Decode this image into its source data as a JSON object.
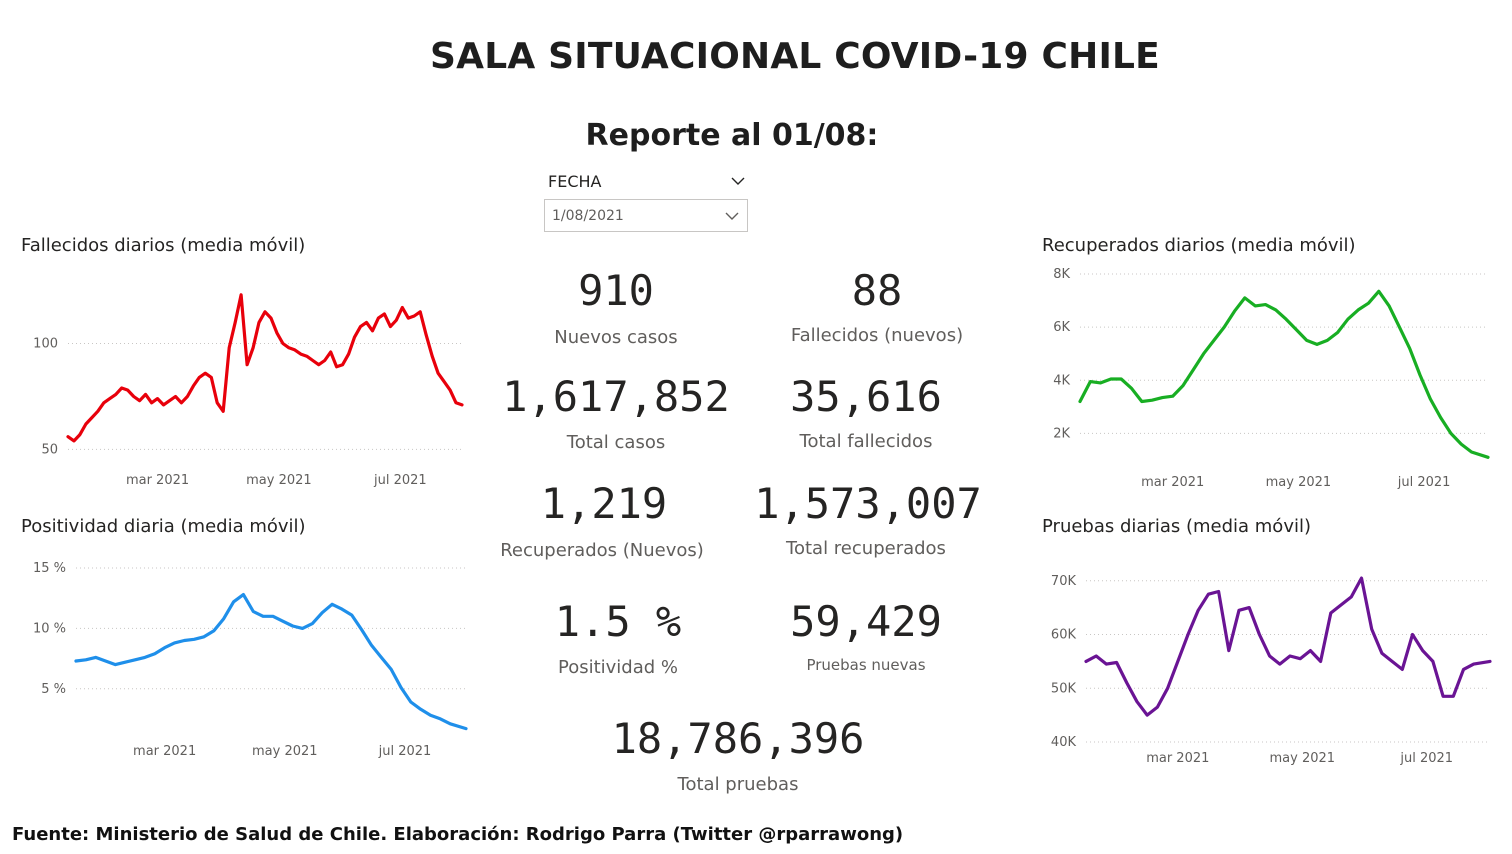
{
  "header": {
    "title": "SALA SITUACIONAL COVID-19 CHILE",
    "subtitle": "Reporte al 01/08:"
  },
  "slicer": {
    "label": "FECHA",
    "value": "1/08/2021"
  },
  "kpis": [
    {
      "value": "910",
      "label": "Nuevos casos"
    },
    {
      "value": "88",
      "label": "Fallecidos (nuevos)"
    },
    {
      "value": "1,617,852",
      "label": "Total casos"
    },
    {
      "value": "35,616",
      "label": "Total fallecidos"
    },
    {
      "value": "1,219",
      "label": "Recuperados (Nuevos)"
    },
    {
      "value": "1,573,007",
      "label": "Total recuperados"
    },
    {
      "value": "1.5 %",
      "label": "Positividad %"
    },
    {
      "value": "59,429",
      "label": "Pruebas nuevas"
    },
    {
      "value": "18,786,396",
      "label": "Total pruebas"
    }
  ],
  "footer": "Fuente: Ministerio de Salud de Chile. Elaboración: Rodrigo Parra (Twitter @rparrawong)",
  "chart_data": [
    {
      "id": "fallecidos",
      "type": "line",
      "title": "Fallecidos diarios (media móvil)",
      "color": "#e8000b",
      "x_range": [
        "2021-01-15",
        "2021-08-01"
      ],
      "y_range": [
        45,
        130
      ],
      "y_ticks": [
        {
          "v": 50,
          "label": "50"
        },
        {
          "v": 100,
          "label": "100"
        }
      ],
      "x_ticks": [
        {
          "x": "2021-03-01",
          "label": "mar 2021"
        },
        {
          "x": "2021-05-01",
          "label": "may 2021"
        },
        {
          "x": "2021-07-01",
          "label": "jul 2021"
        }
      ],
      "grid": true,
      "x": [
        "2021-01-15",
        "2021-01-18",
        "2021-01-21",
        "2021-01-24",
        "2021-01-27",
        "2021-01-30",
        "2021-02-02",
        "2021-02-05",
        "2021-02-08",
        "2021-02-11",
        "2021-02-14",
        "2021-02-17",
        "2021-02-20",
        "2021-02-23",
        "2021-02-26",
        "2021-03-01",
        "2021-03-04",
        "2021-03-07",
        "2021-03-10",
        "2021-03-13",
        "2021-03-16",
        "2021-03-19",
        "2021-03-22",
        "2021-03-25",
        "2021-03-28",
        "2021-03-31",
        "2021-04-03",
        "2021-04-06",
        "2021-04-09",
        "2021-04-12",
        "2021-04-15",
        "2021-04-18",
        "2021-04-21",
        "2021-04-24",
        "2021-04-27",
        "2021-04-30",
        "2021-05-03",
        "2021-05-06",
        "2021-05-09",
        "2021-05-12",
        "2021-05-15",
        "2021-05-18",
        "2021-05-21",
        "2021-05-24",
        "2021-05-27",
        "2021-05-30",
        "2021-06-02",
        "2021-06-05",
        "2021-06-08",
        "2021-06-11",
        "2021-06-14",
        "2021-06-17",
        "2021-06-20",
        "2021-06-23",
        "2021-06-26",
        "2021-06-29",
        "2021-07-02",
        "2021-07-05",
        "2021-07-08",
        "2021-07-11",
        "2021-07-14",
        "2021-07-17",
        "2021-07-20",
        "2021-07-23",
        "2021-07-26",
        "2021-07-29",
        "2021-08-01"
      ],
      "values": [
        56,
        54,
        57,
        62,
        65,
        68,
        72,
        74,
        76,
        79,
        78,
        75,
        73,
        76,
        72,
        74,
        71,
        73,
        75,
        72,
        75,
        80,
        84,
        86,
        84,
        72,
        68,
        98,
        110,
        123,
        90,
        98,
        110,
        115,
        112,
        105,
        100,
        98,
        97,
        95,
        94,
        92,
        90,
        92,
        96,
        89,
        90,
        95,
        103,
        108,
        110,
        106,
        112,
        114,
        108,
        111,
        117,
        112,
        113,
        115,
        104,
        94,
        86,
        82,
        78,
        72,
        71
      ]
    },
    {
      "id": "positividad",
      "type": "line",
      "title": "Positividad diaria (media móvil)",
      "color": "#1f8fea",
      "x_range": [
        "2021-01-15",
        "2021-08-01"
      ],
      "y_range": [
        1.5,
        15.5
      ],
      "y_ticks": [
        {
          "v": 5,
          "label": "5 %"
        },
        {
          "v": 10,
          "label": "10 %"
        },
        {
          "v": 15,
          "label": "15 %"
        }
      ],
      "x_ticks": [
        {
          "x": "2021-03-01",
          "label": "mar 2021"
        },
        {
          "x": "2021-05-01",
          "label": "may 2021"
        },
        {
          "x": "2021-07-01",
          "label": "jul 2021"
        }
      ],
      "grid": true,
      "x": [
        "2021-01-15",
        "2021-01-20",
        "2021-01-25",
        "2021-01-30",
        "2021-02-04",
        "2021-02-09",
        "2021-02-14",
        "2021-02-19",
        "2021-02-24",
        "2021-03-01",
        "2021-03-06",
        "2021-03-11",
        "2021-03-16",
        "2021-03-21",
        "2021-03-26",
        "2021-03-31",
        "2021-04-05",
        "2021-04-10",
        "2021-04-15",
        "2021-04-20",
        "2021-04-25",
        "2021-04-30",
        "2021-05-05",
        "2021-05-10",
        "2021-05-15",
        "2021-05-20",
        "2021-05-25",
        "2021-05-30",
        "2021-06-04",
        "2021-06-09",
        "2021-06-14",
        "2021-06-19",
        "2021-06-24",
        "2021-06-29",
        "2021-07-04",
        "2021-07-09",
        "2021-07-14",
        "2021-07-19",
        "2021-07-24",
        "2021-08-01"
      ],
      "values": [
        7.3,
        7.4,
        7.6,
        7.3,
        7.0,
        7.2,
        7.4,
        7.6,
        7.9,
        8.4,
        8.8,
        9.0,
        9.1,
        9.3,
        9.8,
        10.8,
        12.2,
        12.8,
        11.4,
        11.0,
        11.0,
        10.6,
        10.2,
        10.0,
        10.4,
        11.3,
        12.0,
        11.6,
        11.1,
        9.9,
        8.6,
        7.6,
        6.6,
        5.1,
        3.9,
        3.3,
        2.8,
        2.5,
        2.1,
        1.7
      ]
    },
    {
      "id": "recuperados",
      "type": "line",
      "title": "Recuperados diarios (media móvil)",
      "color": "#18ae23",
      "x_range": [
        "2021-01-15",
        "2021-08-01"
      ],
      "y_range": [
        1000,
        8000
      ],
      "y_ticks": [
        {
          "v": 2000,
          "label": "2K"
        },
        {
          "v": 4000,
          "label": "4K"
        },
        {
          "v": 6000,
          "label": "6K"
        },
        {
          "v": 8000,
          "label": "8K"
        }
      ],
      "x_ticks": [
        {
          "x": "2021-03-01",
          "label": "mar 2021"
        },
        {
          "x": "2021-05-01",
          "label": "may 2021"
        },
        {
          "x": "2021-07-01",
          "label": "jul 2021"
        }
      ],
      "grid": true,
      "x": [
        "2021-01-15",
        "2021-01-20",
        "2021-01-25",
        "2021-01-30",
        "2021-02-04",
        "2021-02-09",
        "2021-02-14",
        "2021-02-19",
        "2021-02-24",
        "2021-03-01",
        "2021-03-06",
        "2021-03-11",
        "2021-03-16",
        "2021-03-21",
        "2021-03-26",
        "2021-03-31",
        "2021-04-05",
        "2021-04-10",
        "2021-04-15",
        "2021-04-20",
        "2021-04-25",
        "2021-04-30",
        "2021-05-05",
        "2021-05-10",
        "2021-05-15",
        "2021-05-20",
        "2021-05-25",
        "2021-05-30",
        "2021-06-04",
        "2021-06-09",
        "2021-06-14",
        "2021-06-19",
        "2021-06-24",
        "2021-06-29",
        "2021-07-04",
        "2021-07-09",
        "2021-07-14",
        "2021-07-19",
        "2021-07-24",
        "2021-08-01"
      ],
      "values": [
        3200,
        3950,
        3900,
        4050,
        4050,
        3700,
        3200,
        3250,
        3350,
        3400,
        3800,
        4400,
        5000,
        5500,
        6000,
        6600,
        7100,
        6800,
        6850,
        6650,
        6300,
        5900,
        5500,
        5350,
        5500,
        5800,
        6300,
        6650,
        6900,
        7350,
        6800,
        6000,
        5200,
        4200,
        3300,
        2600,
        2000,
        1600,
        1300,
        1100
      ]
    },
    {
      "id": "pruebas",
      "type": "line",
      "title": "Pruebas diarias (media móvil)",
      "color": "#6a1494",
      "x_range": [
        "2021-01-15",
        "2021-08-01"
      ],
      "y_range": [
        40000,
        72000
      ],
      "y_ticks": [
        {
          "v": 40000,
          "label": "40K"
        },
        {
          "v": 50000,
          "label": "50K"
        },
        {
          "v": 60000,
          "label": "60K"
        },
        {
          "v": 70000,
          "label": "70K"
        }
      ],
      "x_ticks": [
        {
          "x": "2021-03-01",
          "label": "mar 2021"
        },
        {
          "x": "2021-05-01",
          "label": "may 2021"
        },
        {
          "x": "2021-07-01",
          "label": "jul 2021"
        }
      ],
      "grid": true,
      "x": [
        "2021-01-15",
        "2021-01-20",
        "2021-01-25",
        "2021-01-30",
        "2021-02-04",
        "2021-02-09",
        "2021-02-14",
        "2021-02-19",
        "2021-02-24",
        "2021-03-01",
        "2021-03-06",
        "2021-03-11",
        "2021-03-16",
        "2021-03-21",
        "2021-03-26",
        "2021-03-31",
        "2021-04-05",
        "2021-04-10",
        "2021-04-15",
        "2021-04-20",
        "2021-04-25",
        "2021-04-30",
        "2021-05-05",
        "2021-05-10",
        "2021-05-15",
        "2021-05-20",
        "2021-05-25",
        "2021-05-30",
        "2021-06-04",
        "2021-06-09",
        "2021-06-14",
        "2021-06-19",
        "2021-06-24",
        "2021-06-29",
        "2021-07-04",
        "2021-07-09",
        "2021-07-14",
        "2021-07-19",
        "2021-07-24",
        "2021-08-01"
      ],
      "values": [
        55000,
        56000,
        54500,
        54800,
        51000,
        47500,
        45000,
        46500,
        50000,
        55000,
        60000,
        64500,
        67500,
        68000,
        57000,
        64500,
        65000,
        60000,
        56000,
        54500,
        56000,
        55500,
        57000,
        55000,
        64000,
        65500,
        67000,
        70500,
        61000,
        56500,
        55000,
        53500,
        60000,
        57000,
        55000,
        48500,
        48500,
        53500,
        54500,
        55000
      ]
    }
  ]
}
